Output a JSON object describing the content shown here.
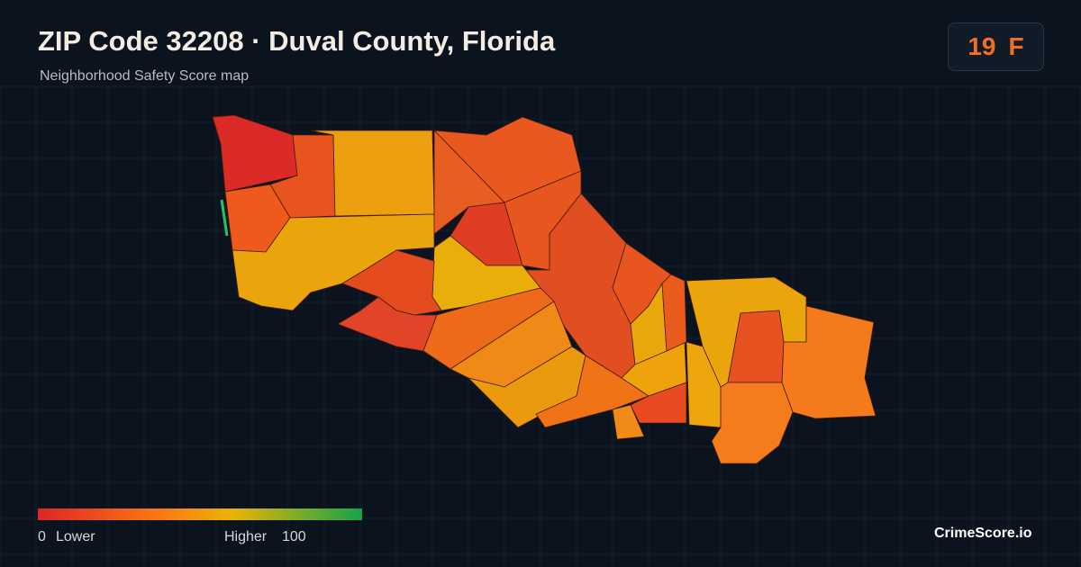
{
  "header": {
    "title": "ZIP Code 32208 · Duval County, Florida",
    "subtitle": "Neighborhood Safety Score map"
  },
  "score": {
    "value": 19,
    "grade": "F"
  },
  "legend": {
    "min": 0,
    "min_label": "Lower",
    "max_label": "Higher",
    "max": 100
  },
  "footer": {
    "brand": "CrimeScore.io"
  }
}
